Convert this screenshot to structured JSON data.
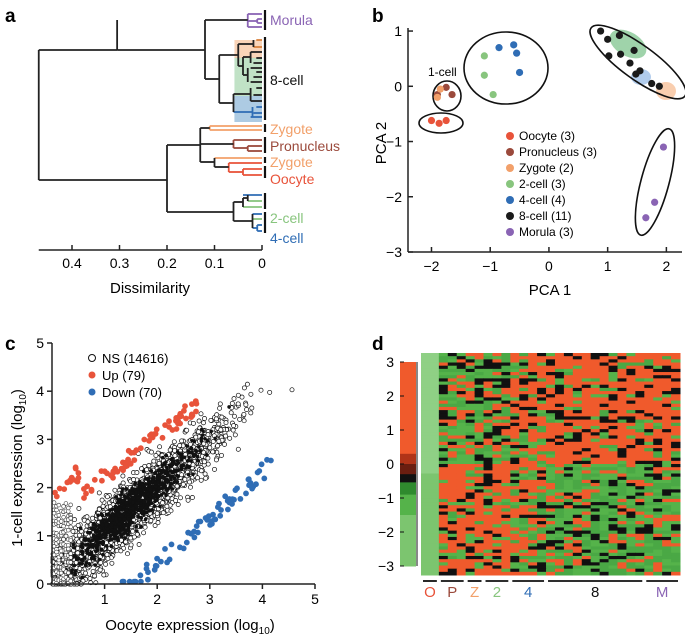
{
  "panels": {
    "a": {
      "label": "a"
    },
    "b": {
      "label": "b"
    },
    "c": {
      "label": "c"
    },
    "d": {
      "label": "d"
    }
  },
  "colors": {
    "oocyte": "#e8533a",
    "pronucleus": "#9b4a3c",
    "zygote": "#f2a06a",
    "twocell": "#88c57e",
    "fourcell": "#2f6db5",
    "eightcell": "#1a1a1a",
    "morula": "#8a64b4",
    "heat_red": "#f05a2c",
    "heat_green": "#55b34a",
    "heat_black": "#111111"
  },
  "chart_data": [
    {
      "panel": "a",
      "type": "dendrogram",
      "xlabel": "Dissimilarity",
      "xticks": [
        "0.4",
        "0.3",
        "0.2",
        "0.1",
        "0"
      ],
      "xtick_values": [
        0.4,
        0.3,
        0.2,
        0.1,
        0
      ],
      "xlim": [
        0.48,
        0
      ],
      "leaf_labels": [
        {
          "text": "Morula",
          "group": "morula"
        },
        {
          "text": "8-cell",
          "group": "eightcell"
        },
        {
          "text": "Zygote",
          "group": "zygote"
        },
        {
          "text": "Pronucleus",
          "group": "pronucleus"
        },
        {
          "text": "Zygote",
          "group": "zygote"
        },
        {
          "text": "Oocyte",
          "group": "oocyte"
        },
        {
          "text": "2-cell",
          "group": "twocell"
        },
        {
          "text": "4-cell",
          "group": "fourcell"
        }
      ]
    },
    {
      "panel": "b",
      "type": "scatter",
      "xlabel": "PCA 1",
      "ylabel": "PCA 2",
      "xlim": [
        -2.4,
        2.3
      ],
      "ylim": [
        -3,
        1.2
      ],
      "xticks": [
        -2,
        -1,
        0,
        1,
        2
      ],
      "yticks": [
        1,
        0,
        -1,
        -2,
        -3
      ],
      "cluster_annotation": "1-cell",
      "series": [
        {
          "name": "Oocyte (3)",
          "group": "oocyte",
          "points": [
            [
              -2.0,
              -0.62
            ],
            [
              -1.87,
              -0.67
            ],
            [
              -1.75,
              -0.62
            ]
          ]
        },
        {
          "name": "Pronucleus (3)",
          "group": "pronucleus",
          "points": [
            [
              -1.9,
              -0.15
            ],
            [
              -1.75,
              -0.02
            ],
            [
              -1.65,
              -0.15
            ]
          ]
        },
        {
          "name": "Zygote (2)",
          "group": "zygote",
          "points": [
            [
              -1.85,
              -0.05
            ],
            [
              -1.9,
              -0.2
            ]
          ]
        },
        {
          "name": "2-cell (3)",
          "group": "twocell",
          "points": [
            [
              -1.1,
              0.55
            ],
            [
              -1.1,
              0.2
            ],
            [
              -0.95,
              -0.15
            ]
          ]
        },
        {
          "name": "4-cell (4)",
          "group": "fourcell",
          "points": [
            [
              -0.85,
              0.7
            ],
            [
              -0.6,
              0.75
            ],
            [
              -0.55,
              0.6
            ],
            [
              -0.5,
              0.25
            ]
          ]
        },
        {
          "name": "8-cell (11)",
          "group": "eightcell",
          "points": [
            [
              0.88,
              1.0
            ],
            [
              1.0,
              0.85
            ],
            [
              1.2,
              0.92
            ],
            [
              1.22,
              0.58
            ],
            [
              1.02,
              0.55
            ],
            [
              1.45,
              0.65
            ],
            [
              1.38,
              0.42
            ],
            [
              1.48,
              0.22
            ],
            [
              1.55,
              0.28
            ],
            [
              1.75,
              0.05
            ],
            [
              1.88,
              0.0
            ]
          ]
        },
        {
          "name": "Morula (3)",
          "group": "morula",
          "points": [
            [
              1.95,
              -1.1
            ],
            [
              1.8,
              -2.1
            ],
            [
              1.65,
              -2.38
            ]
          ]
        }
      ]
    },
    {
      "panel": "c",
      "type": "scatter",
      "xlabel": "Oocyte expression (log",
      "xlabel_sub": "10",
      "xlabel_end": ")",
      "ylabel": "1-cell expression (log",
      "ylabel_sub": "10",
      "ylabel_end": ")",
      "xlim": [
        0,
        5
      ],
      "ylim": [
        0,
        5
      ],
      "xticks": [
        1,
        2,
        3,
        4,
        5
      ],
      "yticks": [
        0,
        1,
        2,
        3,
        4,
        5
      ],
      "legend": [
        {
          "label": "NS (14616)",
          "group": "ns"
        },
        {
          "label": "Up (79)",
          "group": "up"
        },
        {
          "label": "Down (70)",
          "group": "down"
        }
      ]
    },
    {
      "panel": "d",
      "type": "heatmap",
      "colorbar_ticks": [
        "3",
        "2",
        "1",
        "0",
        "-1",
        "-2",
        "-3"
      ],
      "colorbar_values": [
        3,
        2,
        1,
        0,
        -1,
        -2,
        -3
      ],
      "column_groups": [
        {
          "label": "O",
          "group": "oocyte"
        },
        {
          "label": "P",
          "group": "pronucleus"
        },
        {
          "label": "Z",
          "group": "zygote"
        },
        {
          "label": "2",
          "group": "twocell"
        },
        {
          "label": "4",
          "group": "fourcell"
        },
        {
          "label": "8",
          "group": "eightcell"
        },
        {
          "label": "M",
          "group": "morula"
        }
      ]
    }
  ]
}
